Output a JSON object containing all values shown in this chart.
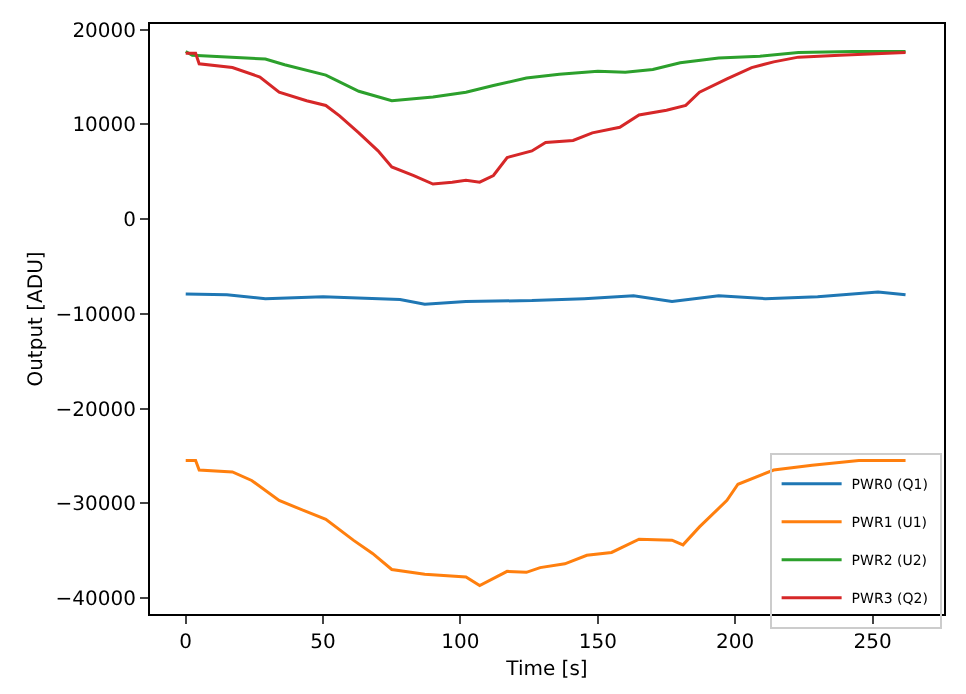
{
  "chart_data": {
    "type": "line",
    "xlabel": "Time [s]",
    "ylabel": "Output [ADU]",
    "xlim": [
      -13,
      276
    ],
    "xticks": [
      0,
      50,
      100,
      150,
      200,
      250
    ],
    "ylim": [
      -41700,
      20600
    ],
    "yticks": [
      20000,
      10000,
      0,
      {
        "value": -10000,
        "label": "−10000"
      },
      {
        "value": -20000,
        "label": "−20000"
      },
      {
        "value": -30000,
        "label": "−30000"
      },
      {
        "value": -40000,
        "label": "−40000"
      }
    ],
    "grid": false,
    "legend": "bottom right",
    "marker": "none",
    "line_style": "solid",
    "series": [
      {
        "name": "PWR0 (Q1)",
        "color": "#1f77b4",
        "x": [
          0,
          15,
          29,
          50,
          78,
          87,
          102,
          126,
          145,
          163,
          177,
          194,
          211,
          230,
          252,
          262
        ],
        "values": [
          -7900,
          -8000,
          -8400,
          -8200,
          -8500,
          -9000,
          -8700,
          -8600,
          -8400,
          -8100,
          -8700,
          -8100,
          -8400,
          -8200,
          -7700,
          -8000
        ]
      },
      {
        "name": "PWR1 (U1)",
        "color": "#ff7f0e",
        "x": [
          0,
          3.6,
          4.9,
          17,
          24,
          34,
          44,
          51,
          61,
          68,
          75,
          87,
          102,
          107,
          117,
          124,
          129,
          138,
          146,
          155,
          165,
          177,
          181,
          187,
          197,
          201,
          214,
          228,
          245,
          262
        ],
        "values": [
          -25500,
          -25500,
          -26500,
          -26700,
          -27600,
          -29700,
          -30900,
          -31700,
          -33900,
          -35300,
          -37000,
          -37500,
          -37800,
          -38700,
          -37200,
          -37300,
          -36800,
          -36400,
          -35500,
          -35200,
          -33800,
          -33900,
          -34400,
          -32500,
          -29700,
          -28000,
          -26500,
          -26000,
          -25500,
          -25500
        ]
      },
      {
        "name": "PWR2 (U2)",
        "color": "#2ca02c",
        "x": [
          0,
          2.4,
          29,
          36,
          51,
          63,
          75,
          90,
          102,
          112,
          124,
          136,
          150,
          160,
          170,
          180,
          194,
          209,
          223,
          243,
          262
        ],
        "values": [
          17700,
          17300,
          16900,
          16300,
          15200,
          13500,
          12500,
          12900,
          13400,
          14100,
          14900,
          15300,
          15600,
          15500,
          15800,
          16500,
          17000,
          17200,
          17600,
          17700,
          17700
        ]
      },
      {
        "name": "PWR3 (Q2)",
        "color": "#d62728",
        "x": [
          0,
          3.6,
          4.9,
          17,
          27,
          34,
          44,
          51,
          56,
          63,
          70,
          75,
          83,
          90,
          97,
          102,
          107,
          112,
          117,
          126,
          131,
          141,
          148,
          158,
          165,
          175,
          182,
          187,
          197,
          206,
          214,
          223,
          238,
          262
        ],
        "values": [
          17500,
          17500,
          16400,
          16000,
          15000,
          13400,
          12500,
          12000,
          10900,
          9100,
          7200,
          5500,
          4600,
          3700,
          3900,
          4100,
          3900,
          4600,
          6500,
          7200,
          8100,
          8300,
          9100,
          9700,
          11000,
          11500,
          12000,
          13400,
          14800,
          16000,
          16600,
          17100,
          17300,
          17600
        ]
      }
    ]
  }
}
